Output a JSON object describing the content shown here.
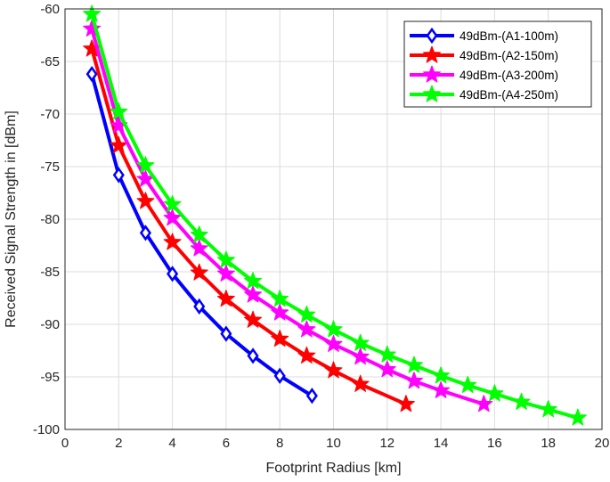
{
  "chart_data": {
    "type": "line",
    "title": "",
    "xlabel": "Footprint Radius [km]",
    "ylabel": "Received Signal Strength in [dBm]",
    "xlim": [
      0,
      20
    ],
    "ylim": [
      -100,
      -60
    ],
    "xticks": [
      0,
      2,
      4,
      6,
      8,
      10,
      12,
      14,
      16,
      18,
      20
    ],
    "yticks": [
      -100,
      -95,
      -90,
      -85,
      -80,
      -75,
      -70,
      -65,
      -60
    ],
    "grid": true,
    "legend_position": "top-right",
    "series": [
      {
        "name": "49dBm-(A1-100m)",
        "color": "#0000ff",
        "marker": "diamond",
        "x": [
          1,
          2,
          3,
          4,
          5,
          6,
          7,
          8,
          9.2
        ],
        "y": [
          -66.2,
          -75.8,
          -81.3,
          -85.2,
          -88.3,
          -90.9,
          -93.0,
          -94.9,
          -96.8
        ]
      },
      {
        "name": "49dBm-(A2-150m)",
        "color": "#ff0000",
        "marker": "star",
        "x": [
          1,
          2,
          3,
          4,
          5,
          6,
          7,
          8,
          9,
          10,
          11,
          12.7
        ],
        "y": [
          -63.8,
          -73.0,
          -78.3,
          -82.2,
          -85.1,
          -87.6,
          -89.6,
          -91.4,
          -93.0,
          -94.4,
          -95.7,
          -97.6
        ]
      },
      {
        "name": "49dBm-(A3-200m)",
        "color": "#ff00ff",
        "marker": "star",
        "x": [
          1,
          2,
          3,
          4,
          5,
          6,
          7,
          8,
          9,
          10,
          11,
          12,
          13,
          14,
          15.6
        ],
        "y": [
          -61.9,
          -71.1,
          -76.2,
          -79.9,
          -82.8,
          -85.2,
          -87.2,
          -88.9,
          -90.5,
          -91.9,
          -93.1,
          -94.3,
          -95.4,
          -96.3,
          -97.6
        ]
      },
      {
        "name": "49dBm-(A4-250m)",
        "color": "#00ff00",
        "marker": "star",
        "x": [
          1,
          2,
          3,
          4,
          5,
          6,
          7,
          8,
          9,
          10,
          11,
          12,
          13,
          14,
          15,
          16,
          17,
          18,
          19.1
        ],
        "y": [
          -60.5,
          -69.8,
          -74.9,
          -78.6,
          -81.5,
          -83.9,
          -85.9,
          -87.6,
          -89.1,
          -90.5,
          -91.8,
          -92.9,
          -93.9,
          -94.9,
          -95.8,
          -96.6,
          -97.4,
          -98.1,
          -98.9
        ]
      }
    ]
  }
}
